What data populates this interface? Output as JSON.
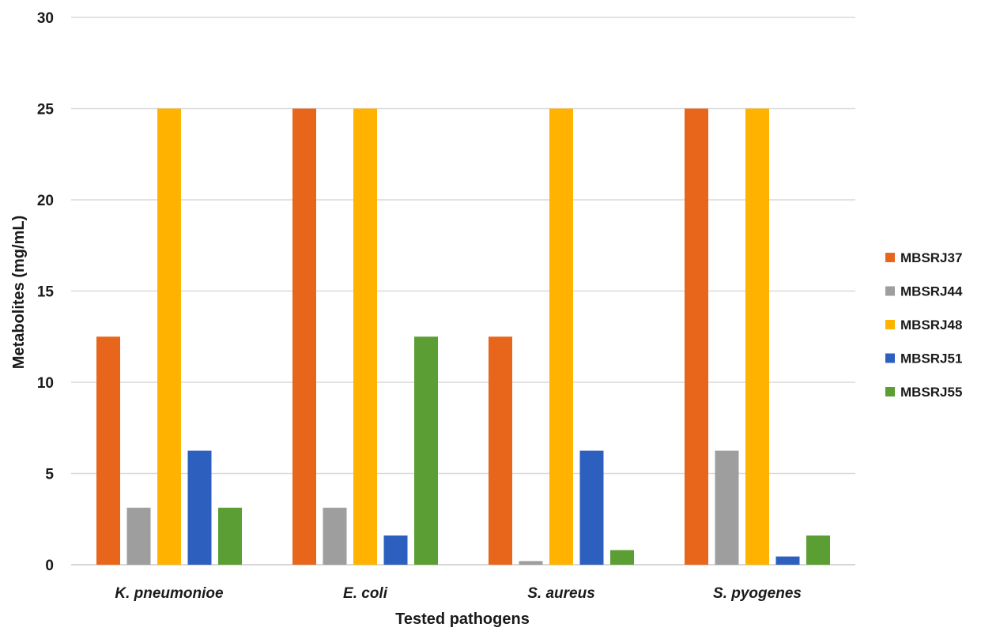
{
  "chart_data": {
    "type": "bar",
    "title": "",
    "xlabel": "Tested pathogens",
    "ylabel": "Metabolites (mg/mL)",
    "categories": [
      "K. pneumonioe",
      "E. coli",
      "S. aureus",
      "S. pyogenes"
    ],
    "ylim": [
      0,
      30
    ],
    "yticks": [
      0,
      5,
      10,
      15,
      20,
      25,
      30
    ],
    "grid": true,
    "legend_position": "right",
    "series": [
      {
        "name": "MBSRJ37",
        "color": "#E8661C",
        "values": [
          12.5,
          25,
          12.5,
          25
        ]
      },
      {
        "name": "MBSRJ44",
        "color": "#9E9E9E",
        "values": [
          3.125,
          3.125,
          0.2,
          6.25
        ]
      },
      {
        "name": "MBSRJ48",
        "color": "#FFB300",
        "values": [
          25,
          25,
          25,
          25
        ]
      },
      {
        "name": "MBSRJ51",
        "color": "#2C5FBE",
        "values": [
          6.25,
          1.6,
          6.25,
          0.45
        ]
      },
      {
        "name": "MBSRJ55",
        "color": "#5B9E34",
        "values": [
          3.125,
          12.5,
          0.8,
          1.6
        ]
      }
    ]
  }
}
